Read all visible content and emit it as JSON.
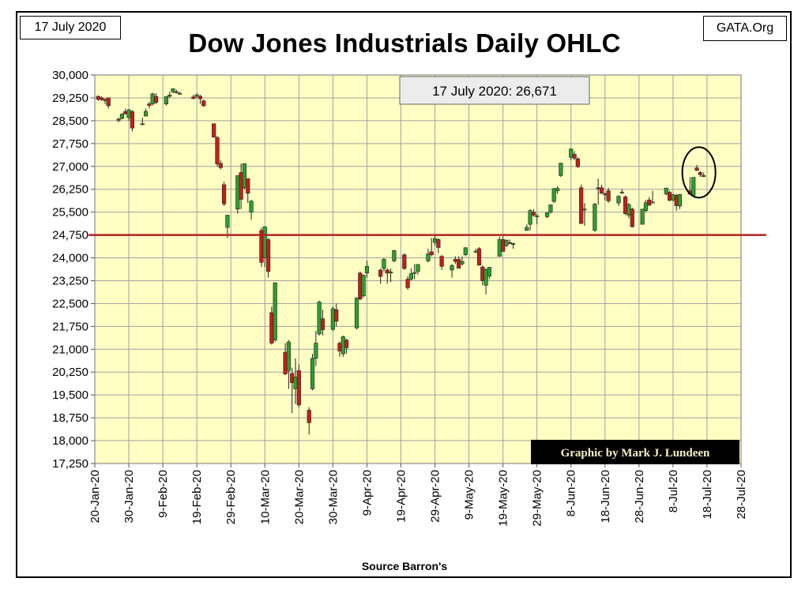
{
  "header": {
    "date_label": "17 July 2020",
    "site_label": "GATA.Org",
    "title": "Dow Jones Industrials Daily OHLC"
  },
  "footer": {
    "source": "Source Barron's"
  },
  "chart_data": {
    "type": "candlestick",
    "title": "Dow Jones Industrials Daily OHLC",
    "xlabel": "",
    "ylabel": "",
    "ylim": [
      17250,
      30000
    ],
    "y_ticks": [
      30000,
      29250,
      28500,
      27750,
      27000,
      26250,
      25500,
      24750,
      24000,
      23250,
      22500,
      21750,
      21000,
      20250,
      19500,
      18750,
      18000,
      17250
    ],
    "x_tick_labels": [
      "20-Jan-20",
      "30-Jan-20",
      "9-Feb-20",
      "19-Feb-20",
      "29-Feb-20",
      "10-Mar-20",
      "20-Mar-20",
      "30-Mar-20",
      "9-Apr-20",
      "19-Apr-20",
      "29-Apr-20",
      "9-May-20",
      "19-May-20",
      "29-May-20",
      "8-Jun-20",
      "18-Jun-20",
      "28-Jun-20",
      "8-Jul-20",
      "18-Jul-20",
      "28-Jul-20"
    ],
    "grid": true,
    "colors": {
      "up": "#2e9e2e",
      "down": "#c0201a",
      "plot_bg": "#ffffc4",
      "reference_line": "#b22222"
    },
    "reference_line": {
      "value": 24750
    },
    "callout": {
      "text": "17 July 2020: 26,671"
    },
    "credit": {
      "text": "Graphic by Mark J. Lundeen"
    },
    "highlight": {
      "date": "2020-07-17",
      "shape": "circle"
    },
    "candles": [
      {
        "date": "2020-01-21",
        "open": 29300,
        "high": 29330,
        "low": 29150,
        "close": 29200
      },
      {
        "date": "2020-01-22",
        "open": 29250,
        "high": 29300,
        "low": 29150,
        "close": 29190
      },
      {
        "date": "2020-01-23",
        "open": 29200,
        "high": 29230,
        "low": 29050,
        "close": 29160
      },
      {
        "date": "2020-01-24",
        "open": 29250,
        "high": 29250,
        "low": 28900,
        "close": 28990
      },
      {
        "date": "2020-01-27",
        "open": 28550,
        "high": 28600,
        "low": 28450,
        "close": 28540
      },
      {
        "date": "2020-01-28",
        "open": 28570,
        "high": 28750,
        "low": 28550,
        "close": 28720
      },
      {
        "date": "2020-01-29",
        "open": 28800,
        "high": 28900,
        "low": 28700,
        "close": 28730
      },
      {
        "date": "2020-01-30",
        "open": 28600,
        "high": 28880,
        "low": 28500,
        "close": 28860
      },
      {
        "date": "2020-01-31",
        "open": 28800,
        "high": 28850,
        "low": 28150,
        "close": 28260
      },
      {
        "date": "2020-02-03",
        "open": 28400,
        "high": 28600,
        "low": 28350,
        "close": 28400
      },
      {
        "date": "2020-02-04",
        "open": 28650,
        "high": 28900,
        "low": 28650,
        "close": 28810
      },
      {
        "date": "2020-02-05",
        "open": 29050,
        "high": 29120,
        "low": 28900,
        "close": 29000
      },
      {
        "date": "2020-02-06",
        "open": 29050,
        "high": 29420,
        "low": 29000,
        "close": 29380
      },
      {
        "date": "2020-02-07",
        "open": 29300,
        "high": 29400,
        "low": 29050,
        "close": 29100
      },
      {
        "date": "2020-02-10",
        "open": 29050,
        "high": 29300,
        "low": 29000,
        "close": 29290
      },
      {
        "date": "2020-02-11",
        "open": 29300,
        "high": 29450,
        "low": 29250,
        "close": 29340
      },
      {
        "date": "2020-02-12",
        "open": 29450,
        "high": 29560,
        "low": 29400,
        "close": 29550
      },
      {
        "date": "2020-02-13",
        "open": 29450,
        "high": 29520,
        "low": 29400,
        "close": 29420
      },
      {
        "date": "2020-02-14",
        "open": 29400,
        "high": 29450,
        "low": 29350,
        "close": 29400
      },
      {
        "date": "2020-02-18",
        "open": 29280,
        "high": 29350,
        "low": 29200,
        "close": 29230
      },
      {
        "date": "2020-02-19",
        "open": 29300,
        "high": 29400,
        "low": 29250,
        "close": 29350
      },
      {
        "date": "2020-02-20",
        "open": 29300,
        "high": 29350,
        "low": 29050,
        "close": 29220
      },
      {
        "date": "2020-02-21",
        "open": 29150,
        "high": 29200,
        "low": 28950,
        "close": 28990
      },
      {
        "date": "2020-02-24",
        "open": 28400,
        "high": 28400,
        "low": 27950,
        "close": 27960
      },
      {
        "date": "2020-02-25",
        "open": 27950,
        "high": 28000,
        "low": 27000,
        "close": 27080
      },
      {
        "date": "2020-02-26",
        "open": 27100,
        "high": 27200,
        "low": 26900,
        "close": 26960
      },
      {
        "date": "2020-02-27",
        "open": 26400,
        "high": 26500,
        "low": 25700,
        "close": 25770
      },
      {
        "date": "2020-02-28",
        "open": 25000,
        "high": 25300,
        "low": 24650,
        "close": 25400
      },
      {
        "date": "2020-03-02",
        "open": 25600,
        "high": 26700,
        "low": 25450,
        "close": 26700
      },
      {
        "date": "2020-03-03",
        "open": 26800,
        "high": 27100,
        "low": 25600,
        "close": 25920
      },
      {
        "date": "2020-03-04",
        "open": 26300,
        "high": 27100,
        "low": 26250,
        "close": 27090
      },
      {
        "date": "2020-03-05",
        "open": 26600,
        "high": 26600,
        "low": 25800,
        "close": 26120
      },
      {
        "date": "2020-03-06",
        "open": 25500,
        "high": 25900,
        "low": 25250,
        "close": 25860
      },
      {
        "date": "2020-03-09",
        "open": 24900,
        "high": 24990,
        "low": 23700,
        "close": 23850
      },
      {
        "date": "2020-03-10",
        "open": 24000,
        "high": 25000,
        "low": 23700,
        "close": 25020
      },
      {
        "date": "2020-03-11",
        "open": 24600,
        "high": 24650,
        "low": 23350,
        "close": 23550
      },
      {
        "date": "2020-03-12",
        "open": 22200,
        "high": 22400,
        "low": 21150,
        "close": 21200
      },
      {
        "date": "2020-03-13",
        "open": 21300,
        "high": 23200,
        "low": 21250,
        "close": 23180
      },
      {
        "date": "2020-03-16",
        "open": 20900,
        "high": 21200,
        "low": 20150,
        "close": 20190
      },
      {
        "date": "2020-03-17",
        "open": 20300,
        "high": 21300,
        "low": 19700,
        "close": 21240
      },
      {
        "date": "2020-03-18",
        "open": 20200,
        "high": 20400,
        "low": 18900,
        "close": 19900
      },
      {
        "date": "2020-03-19",
        "open": 19700,
        "high": 20700,
        "low": 19200,
        "close": 20090
      },
      {
        "date": "2020-03-20",
        "open": 20300,
        "high": 20500,
        "low": 19100,
        "close": 19170
      },
      {
        "date": "2020-03-23",
        "open": 19000,
        "high": 19100,
        "low": 18200,
        "close": 18590
      },
      {
        "date": "2020-03-24",
        "open": 19700,
        "high": 20850,
        "low": 19650,
        "close": 20700
      },
      {
        "date": "2020-03-25",
        "open": 20700,
        "high": 21600,
        "low": 20450,
        "close": 21200
      },
      {
        "date": "2020-03-26",
        "open": 21500,
        "high": 22600,
        "low": 21450,
        "close": 22550
      },
      {
        "date": "2020-03-27",
        "open": 22000,
        "high": 22300,
        "low": 21450,
        "close": 21640
      },
      {
        "date": "2020-03-30",
        "open": 21650,
        "high": 22400,
        "low": 21600,
        "close": 22330
      },
      {
        "date": "2020-03-31",
        "open": 22300,
        "high": 22500,
        "low": 21750,
        "close": 21920
      },
      {
        "date": "2020-04-01",
        "open": 21200,
        "high": 21250,
        "low": 20750,
        "close": 20940
      },
      {
        "date": "2020-04-02",
        "open": 20850,
        "high": 21450,
        "low": 20750,
        "close": 21410
      },
      {
        "date": "2020-04-03",
        "open": 21300,
        "high": 21350,
        "low": 20850,
        "close": 21050
      },
      {
        "date": "2020-04-06",
        "open": 21700,
        "high": 22700,
        "low": 21650,
        "close": 22680
      },
      {
        "date": "2020-04-07",
        "open": 23500,
        "high": 23550,
        "low": 22600,
        "close": 22650
      },
      {
        "date": "2020-04-08",
        "open": 22750,
        "high": 23450,
        "low": 22700,
        "close": 23430
      },
      {
        "date": "2020-04-09",
        "open": 23500,
        "high": 23900,
        "low": 23350,
        "close": 23720
      },
      {
        "date": "2020-04-13",
        "open": 23600,
        "high": 23650,
        "low": 23150,
        "close": 23390
      },
      {
        "date": "2020-04-14",
        "open": 23650,
        "high": 24000,
        "low": 23550,
        "close": 23950
      },
      {
        "date": "2020-04-15",
        "open": 23600,
        "high": 23650,
        "low": 23150,
        "close": 23500
      },
      {
        "date": "2020-04-16",
        "open": 23500,
        "high": 23650,
        "low": 23200,
        "close": 23540
      },
      {
        "date": "2020-04-17",
        "open": 23900,
        "high": 24260,
        "low": 23850,
        "close": 24240
      },
      {
        "date": "2020-04-20",
        "open": 24100,
        "high": 24150,
        "low": 23600,
        "close": 23650
      },
      {
        "date": "2020-04-21",
        "open": 23300,
        "high": 23400,
        "low": 22950,
        "close": 23020
      },
      {
        "date": "2020-04-22",
        "open": 23300,
        "high": 23650,
        "low": 23250,
        "close": 23480
      },
      {
        "date": "2020-04-23",
        "open": 23500,
        "high": 23800,
        "low": 23300,
        "close": 23520
      },
      {
        "date": "2020-04-24",
        "open": 23550,
        "high": 23800,
        "low": 23450,
        "close": 23780
      },
      {
        "date": "2020-04-27",
        "open": 23900,
        "high": 24300,
        "low": 23850,
        "close": 24130
      },
      {
        "date": "2020-04-28",
        "open": 24200,
        "high": 24650,
        "low": 24050,
        "close": 24100
      },
      {
        "date": "2020-04-29",
        "open": 24500,
        "high": 24750,
        "low": 24400,
        "close": 24630
      },
      {
        "date": "2020-04-30",
        "open": 24600,
        "high": 24650,
        "low": 24150,
        "close": 24340
      },
      {
        "date": "2020-05-01",
        "open": 24050,
        "high": 24100,
        "low": 23600,
        "close": 23720
      },
      {
        "date": "2020-05-04",
        "open": 23600,
        "high": 23800,
        "low": 23350,
        "close": 23750
      },
      {
        "date": "2020-05-05",
        "open": 23950,
        "high": 24050,
        "low": 23800,
        "close": 23880
      },
      {
        "date": "2020-05-06",
        "open": 23950,
        "high": 24050,
        "low": 23650,
        "close": 23660
      },
      {
        "date": "2020-05-07",
        "open": 23800,
        "high": 24050,
        "low": 23750,
        "close": 23880
      },
      {
        "date": "2020-05-08",
        "open": 24100,
        "high": 24350,
        "low": 24050,
        "close": 24330
      },
      {
        "date": "2020-05-11",
        "open": 24200,
        "high": 24300,
        "low": 24150,
        "close": 24220
      },
      {
        "date": "2020-05-12",
        "open": 24300,
        "high": 24350,
        "low": 23750,
        "close": 23760
      },
      {
        "date": "2020-05-13",
        "open": 23700,
        "high": 23750,
        "low": 23100,
        "close": 23250
      },
      {
        "date": "2020-05-14",
        "open": 23100,
        "high": 23650,
        "low": 22800,
        "close": 23620
      },
      {
        "date": "2020-05-15",
        "open": 23400,
        "high": 23700,
        "low": 23300,
        "close": 23690
      },
      {
        "date": "2020-05-18",
        "open": 24050,
        "high": 24700,
        "low": 24050,
        "close": 24600
      },
      {
        "date": "2020-05-19",
        "open": 24600,
        "high": 24700,
        "low": 24200,
        "close": 24210
      },
      {
        "date": "2020-05-20",
        "open": 24400,
        "high": 24600,
        "low": 24350,
        "close": 24580
      },
      {
        "date": "2020-05-21",
        "open": 24500,
        "high": 24600,
        "low": 24450,
        "close": 24470
      },
      {
        "date": "2020-05-22",
        "open": 24450,
        "high": 24500,
        "low": 24300,
        "close": 24470
      },
      {
        "date": "2020-05-26",
        "open": 24900,
        "high": 25100,
        "low": 24900,
        "close": 25000
      },
      {
        "date": "2020-05-27",
        "open": 25100,
        "high": 25600,
        "low": 24900,
        "close": 25550
      },
      {
        "date": "2020-05-28",
        "open": 25500,
        "high": 25600,
        "low": 25350,
        "close": 25400
      },
      {
        "date": "2020-05-29",
        "open": 25350,
        "high": 25450,
        "low": 25100,
        "close": 25380
      },
      {
        "date": "2020-06-01",
        "open": 25350,
        "high": 25500,
        "low": 25300,
        "close": 25480
      },
      {
        "date": "2020-06-02",
        "open": 25500,
        "high": 25750,
        "low": 25450,
        "close": 25740
      },
      {
        "date": "2020-06-03",
        "open": 25850,
        "high": 26300,
        "low": 25800,
        "close": 26270
      },
      {
        "date": "2020-06-04",
        "open": 26200,
        "high": 26350,
        "low": 26100,
        "close": 26280
      },
      {
        "date": "2020-06-05",
        "open": 26700,
        "high": 27100,
        "low": 26650,
        "close": 27110
      },
      {
        "date": "2020-06-08",
        "open": 27300,
        "high": 27600,
        "low": 27200,
        "close": 27570
      },
      {
        "date": "2020-06-09",
        "open": 27400,
        "high": 27500,
        "low": 27200,
        "close": 27270
      },
      {
        "date": "2020-06-10",
        "open": 27250,
        "high": 27300,
        "low": 26950,
        "close": 26990
      },
      {
        "date": "2020-06-11",
        "open": 26300,
        "high": 26400,
        "low": 25100,
        "close": 25130
      },
      {
        "date": "2020-06-12",
        "open": 25600,
        "high": 25800,
        "low": 25050,
        "close": 25600
      },
      {
        "date": "2020-06-15",
        "open": 24900,
        "high": 25800,
        "low": 24850,
        "close": 25760
      },
      {
        "date": "2020-06-16",
        "open": 26300,
        "high": 26600,
        "low": 25750,
        "close": 26290
      },
      {
        "date": "2020-06-17",
        "open": 26300,
        "high": 26400,
        "low": 26100,
        "close": 26120
      },
      {
        "date": "2020-06-18",
        "open": 26100,
        "high": 26150,
        "low": 25900,
        "close": 26080
      },
      {
        "date": "2020-06-19",
        "open": 26200,
        "high": 26300,
        "low": 25800,
        "close": 25870
      },
      {
        "date": "2020-06-22",
        "open": 25800,
        "high": 26050,
        "low": 25700,
        "close": 26020
      },
      {
        "date": "2020-06-23",
        "open": 26150,
        "high": 26250,
        "low": 26100,
        "close": 26160
      },
      {
        "date": "2020-06-24",
        "open": 26000,
        "high": 26050,
        "low": 25400,
        "close": 25450
      },
      {
        "date": "2020-06-25",
        "open": 25400,
        "high": 25800,
        "low": 25300,
        "close": 25750
      },
      {
        "date": "2020-06-26",
        "open": 25600,
        "high": 25650,
        "low": 25000,
        "close": 25020
      },
      {
        "date": "2020-06-29",
        "open": 25100,
        "high": 25600,
        "low": 25100,
        "close": 25600
      },
      {
        "date": "2020-06-30",
        "open": 25550,
        "high": 25900,
        "low": 25500,
        "close": 25810
      },
      {
        "date": "2020-07-01",
        "open": 25900,
        "high": 26000,
        "low": 25700,
        "close": 25730
      },
      {
        "date": "2020-07-02",
        "open": 25800,
        "high": 26200,
        "low": 25800,
        "close": 25830
      },
      {
        "date": "2020-07-06",
        "open": 26100,
        "high": 26300,
        "low": 26050,
        "close": 26290
      },
      {
        "date": "2020-07-07",
        "open": 26150,
        "high": 26200,
        "low": 25850,
        "close": 25890
      },
      {
        "date": "2020-07-08",
        "open": 25900,
        "high": 26100,
        "low": 25850,
        "close": 26070
      },
      {
        "date": "2020-07-09",
        "open": 26050,
        "high": 26100,
        "low": 25550,
        "close": 25710
      },
      {
        "date": "2020-07-10",
        "open": 25700,
        "high": 26100,
        "low": 25600,
        "close": 26080
      },
      {
        "date": "2020-07-13",
        "open": 26200,
        "high": 26650,
        "low": 26100,
        "close": 26090
      },
      {
        "date": "2020-07-14",
        "open": 26050,
        "high": 26650,
        "low": 26000,
        "close": 26640
      },
      {
        "date": "2020-07-15",
        "open": 26950,
        "high": 27050,
        "low": 26850,
        "close": 26870
      },
      {
        "date": "2020-07-16",
        "open": 26800,
        "high": 26850,
        "low": 26650,
        "close": 26730
      },
      {
        "date": "2020-07-17",
        "open": 26700,
        "high": 26800,
        "low": 26650,
        "close": 26671
      }
    ]
  }
}
